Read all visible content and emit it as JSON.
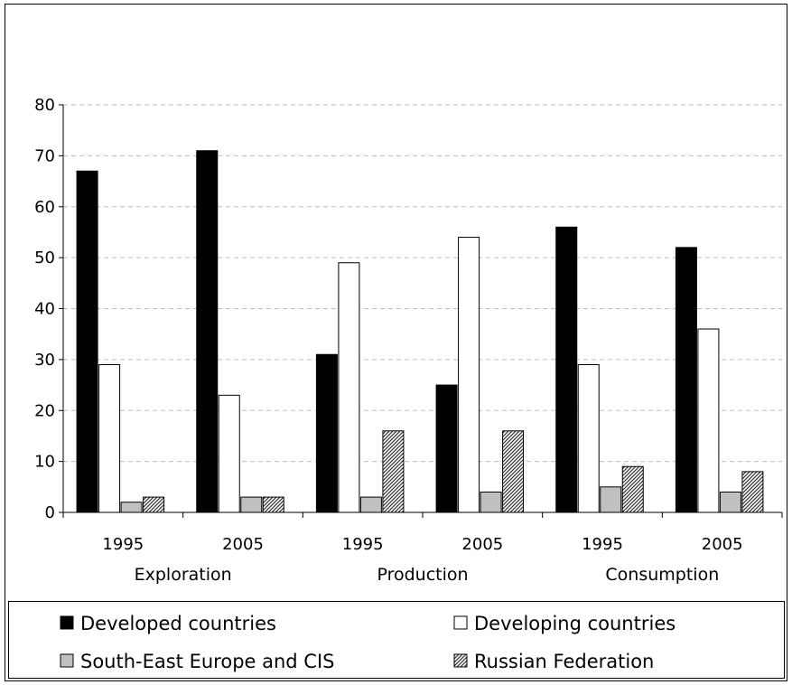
{
  "chart_data": {
    "type": "bar",
    "title": "",
    "xlabel": "",
    "ylabel": "",
    "ylim": [
      0,
      80
    ],
    "yticks": [
      0,
      10,
      20,
      30,
      40,
      50,
      60,
      70,
      80
    ],
    "grid": true,
    "legend_position": "bottom",
    "groups": [
      "Exploration",
      "Production",
      "Consumption"
    ],
    "categories": [
      "1995",
      "2005",
      "1995",
      "2005",
      "1995",
      "2005"
    ],
    "series": [
      {
        "name": "Developed countries",
        "fill": "#000000",
        "pattern": "solid",
        "values": [
          67,
          71,
          31,
          25,
          56,
          52
        ]
      },
      {
        "name": "Developing countries",
        "fill": "#ffffff",
        "pattern": "solid",
        "values": [
          29,
          23,
          49,
          54,
          29,
          36
        ]
      },
      {
        "name": "South-East Europe and CIS",
        "fill": "#c0c0c0",
        "pattern": "solid",
        "values": [
          2,
          3,
          3,
          4,
          5,
          4
        ]
      },
      {
        "name": "Russian Federation",
        "fill": "#808080",
        "pattern": "hatched",
        "values": [
          3,
          3,
          16,
          16,
          9,
          8
        ]
      }
    ]
  }
}
